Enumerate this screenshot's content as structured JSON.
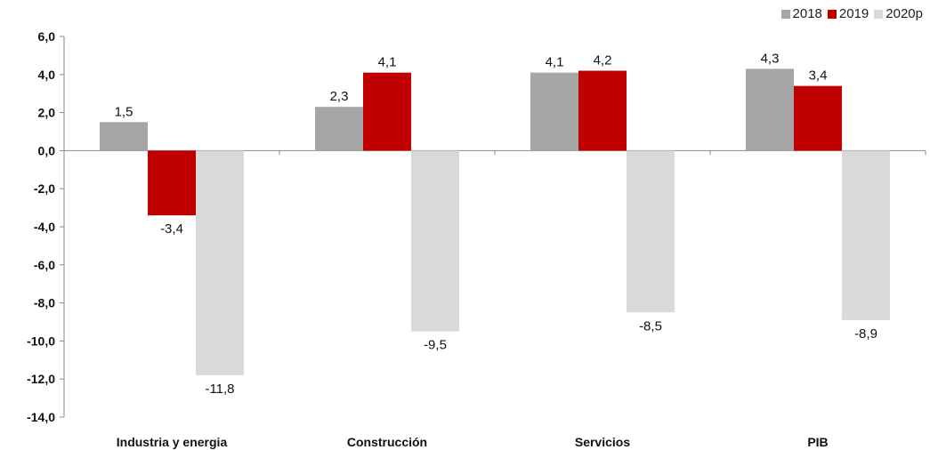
{
  "chart_data": {
    "type": "bar",
    "categories": [
      "Industria y energia",
      "Construcción",
      "Servicios",
      "PIB"
    ],
    "series": [
      {
        "name": "2018",
        "color": "#a6a6a6",
        "values": [
          1.5,
          2.3,
          4.1,
          4.3
        ],
        "labels": [
          "1,5",
          "2,3",
          "4,1",
          "4,3"
        ]
      },
      {
        "name": "2019",
        "color": "#c00000",
        "values": [
          -3.4,
          4.1,
          4.2,
          3.4
        ],
        "labels": [
          "-3,4",
          "4,1",
          "4,2",
          "3,4"
        ]
      },
      {
        "name": "2020p",
        "color": "#d9d9d9",
        "values": [
          -11.8,
          -9.5,
          -8.5,
          -8.9
        ],
        "labels": [
          "-11,8",
          "-9,5",
          "-8,5",
          "-8,9"
        ]
      }
    ],
    "ylim": [
      -14,
      6
    ],
    "yticks": [
      6,
      4,
      2,
      0,
      -2,
      -4,
      -6,
      -8,
      -10,
      -12,
      -14
    ],
    "ytick_labels": [
      "6,0",
      "4,0",
      "2,0",
      "0,0",
      "-2,0",
      "-4,0",
      "-6,0",
      "-8,0",
      "-10,0",
      "-12,0",
      "-14,0"
    ],
    "title": "",
    "xlabel": "",
    "ylabel": "",
    "legend_position": "top-right",
    "grid": false
  }
}
